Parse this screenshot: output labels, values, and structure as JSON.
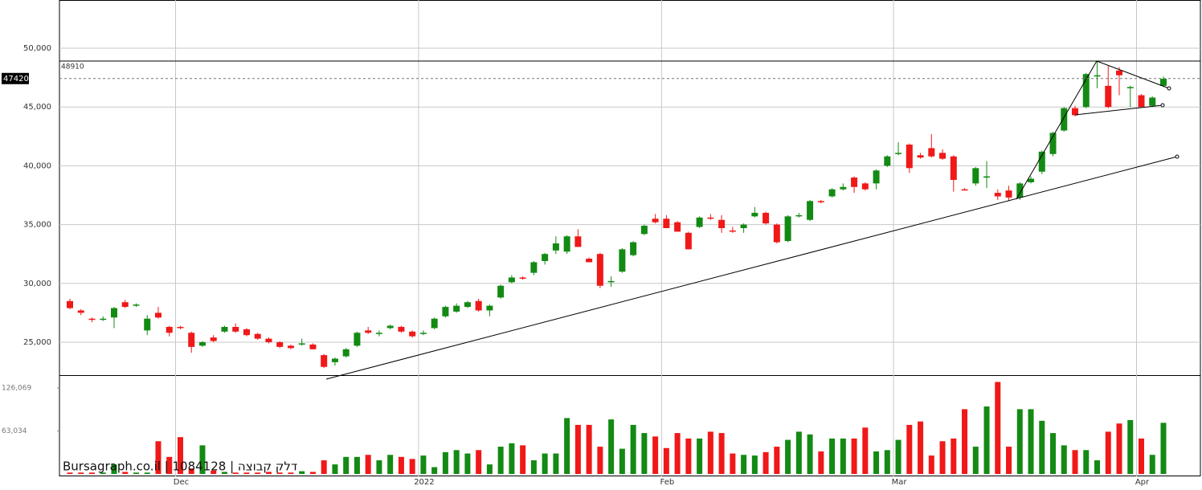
{
  "chart_data": {
    "type": "candlestick",
    "categories": [
      null,
      null,
      null,
      null,
      null,
      null,
      null,
      null,
      null,
      null,
      "Dec",
      null,
      null,
      null,
      null,
      null,
      null,
      null,
      null,
      null,
      null,
      null,
      null,
      null,
      null,
      null,
      null,
      null,
      null,
      null,
      null,
      null,
      "2022",
      null,
      null,
      null,
      null,
      null,
      null,
      null,
      null,
      null,
      null,
      null,
      null,
      null,
      null,
      null,
      null,
      null,
      null,
      null,
      null,
      null,
      "Feb",
      null,
      null,
      null,
      null,
      null,
      null,
      null,
      null,
      null,
      null,
      null,
      null,
      null,
      null,
      null,
      null,
      null,
      null,
      null,
      null,
      "Mar",
      null,
      null,
      null,
      null,
      null,
      null,
      null,
      null,
      null,
      null,
      null,
      null,
      null,
      null,
      null,
      null,
      null,
      null,
      null,
      null,
      null,
      "Apr",
      null,
      null
    ],
    "ohlc": [
      [
        28500,
        28700,
        27800,
        27900
      ],
      [
        27700,
        27800,
        27300,
        27500
      ],
      [
        27000,
        27100,
        26700,
        26900
      ],
      [
        26900,
        27200,
        26800,
        27000
      ],
      [
        27100,
        28000,
        26200,
        27900
      ],
      [
        28400,
        28600,
        27900,
        28000
      ],
      [
        28100,
        28300,
        28000,
        28200
      ],
      [
        26000,
        27300,
        25600,
        27000
      ],
      [
        27500,
        28000,
        27000,
        27100
      ],
      [
        26300,
        26400,
        25500,
        25800
      ],
      [
        26300,
        26400,
        26100,
        26200
      ],
      [
        25800,
        25900,
        24100,
        24600
      ],
      [
        24700,
        25100,
        24600,
        25000
      ],
      [
        25400,
        25600,
        25000,
        25100
      ],
      [
        25900,
        26400,
        25800,
        26300
      ],
      [
        26300,
        26600,
        25800,
        25900
      ],
      [
        26100,
        26200,
        25500,
        25600
      ],
      [
        25700,
        25800,
        25200,
        25300
      ],
      [
        25300,
        25400,
        24900,
        25000
      ],
      [
        25000,
        25100,
        24500,
        24600
      ],
      [
        24700,
        24800,
        24400,
        24500
      ],
      [
        24800,
        25300,
        24700,
        24900
      ],
      [
        24800,
        24900,
        24400,
        24400
      ],
      [
        23900,
        24000,
        22800,
        22900
      ],
      [
        23300,
        23700,
        23000,
        23600
      ],
      [
        23800,
        24500,
        23700,
        24400
      ],
      [
        24700,
        25900,
        24600,
        25800
      ],
      [
        26000,
        26300,
        25700,
        25800
      ],
      [
        25700,
        26000,
        25500,
        25800
      ],
      [
        26200,
        26500,
        26100,
        26400
      ],
      [
        26300,
        26400,
        25800,
        25900
      ],
      [
        25900,
        26000,
        25400,
        25500
      ],
      [
        25700,
        26000,
        25600,
        25800
      ],
      [
        26200,
        27100,
        26100,
        27000
      ],
      [
        27200,
        28100,
        27100,
        28000
      ],
      [
        27600,
        28300,
        27500,
        28100
      ],
      [
        28000,
        28500,
        27900,
        28400
      ],
      [
        28500,
        28700,
        27600,
        27700
      ],
      [
        27700,
        28200,
        27200,
        28100
      ],
      [
        28800,
        29900,
        28700,
        29800
      ],
      [
        30100,
        30700,
        30000,
        30500
      ],
      [
        30500,
        30600,
        30300,
        30400
      ],
      [
        30900,
        31900,
        30700,
        31800
      ],
      [
        31900,
        32600,
        31600,
        32500
      ],
      [
        32800,
        34000,
        32500,
        33400
      ],
      [
        32700,
        34100,
        32500,
        34000
      ],
      [
        34000,
        34600,
        33100,
        33100
      ],
      [
        32100,
        32200,
        31800,
        31800
      ],
      [
        32500,
        32600,
        29600,
        29800
      ],
      [
        30100,
        30600,
        29700,
        30200
      ],
      [
        31000,
        33000,
        30900,
        32900
      ],
      [
        32400,
        33600,
        32300,
        33500
      ],
      [
        34200,
        35000,
        34100,
        34900
      ],
      [
        35500,
        35900,
        35100,
        35200
      ],
      [
        35500,
        35800,
        34700,
        34700
      ],
      [
        35200,
        35300,
        34400,
        34400
      ],
      [
        34300,
        34400,
        32900,
        32900
      ],
      [
        34800,
        35700,
        34700,
        35600
      ],
      [
        35600,
        35900,
        35400,
        35500
      ],
      [
        35400,
        35800,
        34300,
        34700
      ],
      [
        34500,
        34800,
        34300,
        34400
      ],
      [
        34700,
        35100,
        34300,
        35000
      ],
      [
        35700,
        36500,
        35600,
        36000
      ],
      [
        36000,
        36100,
        35000,
        35100
      ],
      [
        35000,
        35100,
        33400,
        33500
      ],
      [
        33600,
        35800,
        33500,
        35700
      ],
      [
        35700,
        36000,
        35600,
        35800
      ],
      [
        35400,
        37100,
        35300,
        37000
      ],
      [
        37000,
        37100,
        36800,
        36900
      ],
      [
        37400,
        38100,
        37300,
        38000
      ],
      [
        38000,
        38500,
        37900,
        38200
      ],
      [
        39000,
        39100,
        37700,
        38200
      ],
      [
        38500,
        38600,
        37900,
        38000
      ],
      [
        38500,
        39700,
        38000,
        39600
      ],
      [
        40000,
        40900,
        39900,
        40800
      ],
      [
        41000,
        42000,
        40900,
        41100
      ],
      [
        41800,
        41900,
        39400,
        39800
      ],
      [
        40900,
        41100,
        40600,
        40700
      ],
      [
        41500,
        42700,
        40700,
        40800
      ],
      [
        41100,
        41400,
        40500,
        40600
      ],
      [
        40800,
        40900,
        37800,
        38800
      ],
      [
        38000,
        38100,
        37900,
        37900
      ],
      [
        38500,
        39900,
        38300,
        39800
      ],
      [
        39000,
        40400,
        38100,
        39100
      ],
      [
        37700,
        38000,
        37100,
        37400
      ],
      [
        37900,
        38300,
        37000,
        37300
      ],
      [
        37300,
        38600,
        37100,
        38500
      ],
      [
        38600,
        39100,
        38500,
        38900
      ],
      [
        39500,
        41300,
        39300,
        41200
      ],
      [
        41000,
        42900,
        40800,
        42800
      ],
      [
        43000,
        45000,
        42900,
        44900
      ],
      [
        44900,
        45100,
        44200,
        44300
      ],
      [
        45000,
        47900,
        44900,
        47800
      ],
      [
        47600,
        48900,
        46600,
        47700
      ],
      [
        46800,
        48500,
        44900,
        45000
      ],
      [
        48100,
        48400,
        46000,
        47700
      ],
      [
        46600,
        46800,
        45000,
        46700
      ],
      [
        46000,
        46100,
        45000,
        45000
      ],
      [
        45100,
        45900,
        45000,
        45800
      ],
      [
        46800,
        47600,
        46700,
        47400
      ]
    ],
    "volume": [
      2000,
      2000,
      2000,
      2000,
      14000,
      3000,
      2000,
      2000,
      48000,
      25000,
      54000,
      8000,
      42000,
      5000,
      3000,
      2000,
      2000,
      2000,
      3000,
      2000,
      2000,
      4000,
      3000,
      20000,
      14000,
      25000,
      25000,
      28000,
      20000,
      28000,
      25000,
      22000,
      27000,
      10000,
      32000,
      35000,
      30000,
      35000,
      14000,
      40000,
      45000,
      42000,
      20000,
      30000,
      30000,
      82000,
      72000,
      72000,
      40000,
      80000,
      37000,
      72000,
      60000,
      55000,
      38000,
      60000,
      52000,
      52000,
      62000,
      60000,
      30000,
      28000,
      27000,
      32000,
      40000,
      50000,
      62000,
      58000,
      33000,
      52000,
      52000,
      52000,
      68000,
      33000,
      35000,
      50000,
      72000,
      77000,
      27000,
      48000,
      52000,
      95000,
      40000,
      99000,
      135000,
      40000,
      95000,
      95000,
      78000,
      60000,
      42000,
      35000,
      35000,
      20000,
      62000,
      74000,
      79000,
      52000,
      28000,
      75000
    ],
    "ylim": [
      22199,
      54098
    ],
    "yticks": [
      {
        "value": 25000,
        "label": "25,000"
      },
      {
        "value": 30000,
        "label": "30,000"
      },
      {
        "value": 35000,
        "label": "35,000"
      },
      {
        "value": 40000,
        "label": "40,000"
      },
      {
        "value": 45000,
        "label": "45,000"
      },
      {
        "value": 50000,
        "label": "50,000"
      }
    ],
    "vol_ylim": [
      0,
      145000
    ],
    "vol_yticks": [
      {
        "value": 63034,
        "label": "63,034"
      },
      {
        "value": 126069,
        "label": "126,069"
      }
    ],
    "high_line": 48910,
    "last_price": 47420,
    "up_color": "#138a13",
    "down_color": "#f01818",
    "grid": true,
    "watermark": "Bursagraph.co.il | 1084128 | דלק קבוצה"
  }
}
